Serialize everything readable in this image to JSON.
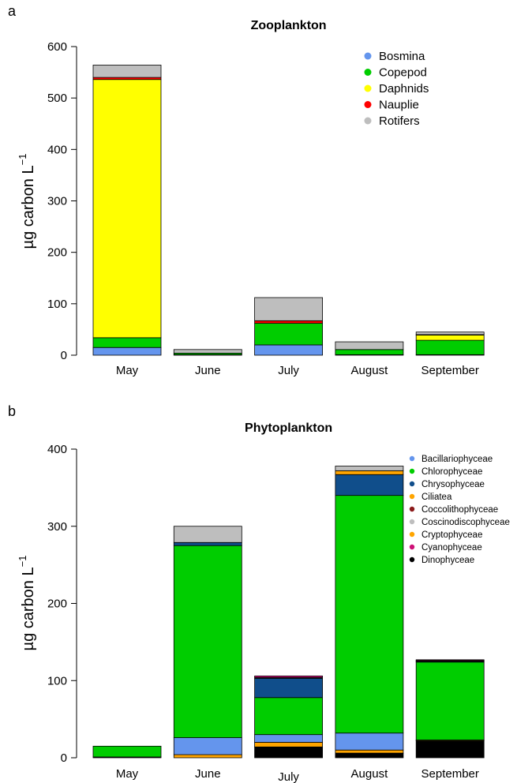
{
  "chart_data": [
    {
      "panel_label": "a",
      "type": "bar",
      "stacked": true,
      "title": "Zooplankton",
      "ylabel": "µg carbon L",
      "ylabel_superscript": "−1",
      "xlabel": "",
      "ylim": [
        0,
        600
      ],
      "yticks": [
        "0",
        "100",
        "200",
        "300",
        "400",
        "500",
        "600"
      ],
      "categories": [
        "May",
        "June",
        "July",
        "August",
        "September"
      ],
      "legend_position": "top-right",
      "series": [
        {
          "name": "Bosmina",
          "color": "#6495ED",
          "values": [
            15,
            1,
            20,
            1,
            1
          ]
        },
        {
          "name": "Copepod",
          "color": "#00CD00",
          "values": [
            19,
            3,
            42,
            10,
            28
          ]
        },
        {
          "name": "Daphnids",
          "color": "#FFFF00",
          "values": [
            502,
            0,
            0,
            0,
            10
          ]
        },
        {
          "name": "Nauplie",
          "color": "#FF0000",
          "values": [
            4,
            0,
            5,
            0,
            1
          ]
        },
        {
          "name": "Rotifers",
          "color": "#BEBEBE",
          "values": [
            24,
            7,
            45,
            15,
            5
          ]
        }
      ]
    },
    {
      "panel_label": "b",
      "type": "bar",
      "stacked": true,
      "title": "Phytoplankton",
      "ylabel": "µg carbon L",
      "ylabel_superscript": "−1",
      "xlabel": "",
      "ylim": [
        0,
        400
      ],
      "yticks": [
        "0",
        "100",
        "200",
        "300",
        "400"
      ],
      "categories": [
        "May",
        "June",
        "July",
        "August",
        "September"
      ],
      "legend_position": "top-right",
      "series": [
        {
          "name": "Dinophyceae",
          "color": "#000000",
          "values": [
            1,
            0,
            14,
            6,
            22
          ]
        },
        {
          "name": "Ciliatea",
          "color": "#FFA500",
          "values": [
            0,
            4,
            6,
            4,
            1
          ]
        },
        {
          "name": "Bacillariophyceae",
          "color": "#6495ED",
          "values": [
            0,
            22,
            10,
            22,
            0
          ]
        },
        {
          "name": "Chlorophyceae",
          "color": "#00CD00",
          "values": [
            14,
            249,
            48,
            308,
            101
          ]
        },
        {
          "name": "Chrysophyceae",
          "color": "#104E8B",
          "values": [
            0,
            4,
            25,
            27,
            1
          ]
        },
        {
          "name": "Cryptophyceae",
          "color": "#FFA500",
          "values": [
            0,
            0,
            0,
            5,
            0
          ]
        },
        {
          "name": "Coccolithophyceae",
          "color": "#8B1A1A",
          "values": [
            0,
            0,
            1,
            0,
            1
          ]
        },
        {
          "name": "Cyanophyceae",
          "color": "#CD1076",
          "values": [
            0,
            0,
            2,
            0,
            1
          ]
        },
        {
          "name": "Coscinodiscophyceae",
          "color": "#BEBEBE",
          "values": [
            0,
            21,
            0,
            6,
            0
          ]
        }
      ],
      "legend_order": [
        "Bacillariophyceae",
        "Chlorophyceae",
        "Chrysophyceae",
        "Ciliatea",
        "Coccolithophyceae",
        "Coscinodiscophyceae",
        "Cryptophyceae",
        "Cyanophyceae",
        "Dinophyceae"
      ]
    }
  ]
}
